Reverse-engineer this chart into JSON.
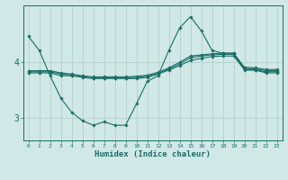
{
  "xlabel": "Humidex (Indice chaleur)",
  "x_values": [
    0,
    1,
    2,
    3,
    4,
    5,
    6,
    7,
    8,
    9,
    10,
    11,
    12,
    13,
    14,
    15,
    16,
    17,
    18,
    19,
    20,
    21,
    22,
    23
  ],
  "line1": [
    4.45,
    4.2,
    3.75,
    3.35,
    3.1,
    2.95,
    2.87,
    2.93,
    2.87,
    2.87,
    3.25,
    3.65,
    3.75,
    4.2,
    4.6,
    4.8,
    4.55,
    4.2,
    4.15,
    4.15,
    3.85,
    3.85,
    3.8,
    3.8
  ],
  "line2": [
    3.8,
    3.8,
    3.8,
    3.75,
    3.75,
    3.72,
    3.7,
    3.7,
    3.7,
    3.7,
    3.7,
    3.72,
    3.78,
    3.85,
    3.93,
    4.02,
    4.06,
    4.09,
    4.1,
    4.1,
    3.86,
    3.85,
    3.82,
    3.82
  ],
  "line3": [
    3.82,
    3.82,
    3.82,
    3.78,
    3.76,
    3.73,
    3.71,
    3.71,
    3.71,
    3.71,
    3.72,
    3.74,
    3.79,
    3.87,
    3.96,
    4.07,
    4.1,
    4.12,
    4.13,
    4.13,
    3.88,
    3.87,
    3.84,
    3.84
  ],
  "line4": [
    3.84,
    3.84,
    3.84,
    3.8,
    3.78,
    3.75,
    3.73,
    3.73,
    3.73,
    3.73,
    3.74,
    3.76,
    3.81,
    3.89,
    3.99,
    4.1,
    4.12,
    4.14,
    4.15,
    4.15,
    3.9,
    3.89,
    3.86,
    3.86
  ],
  "bg_color": "#d0e8e6",
  "line_color": "#1a6e65",
  "grid_color": "#b8d4d0",
  "ylim": [
    2.6,
    5.0
  ],
  "yticks": [
    3,
    4
  ],
  "xlim": [
    -0.5,
    23.5
  ]
}
